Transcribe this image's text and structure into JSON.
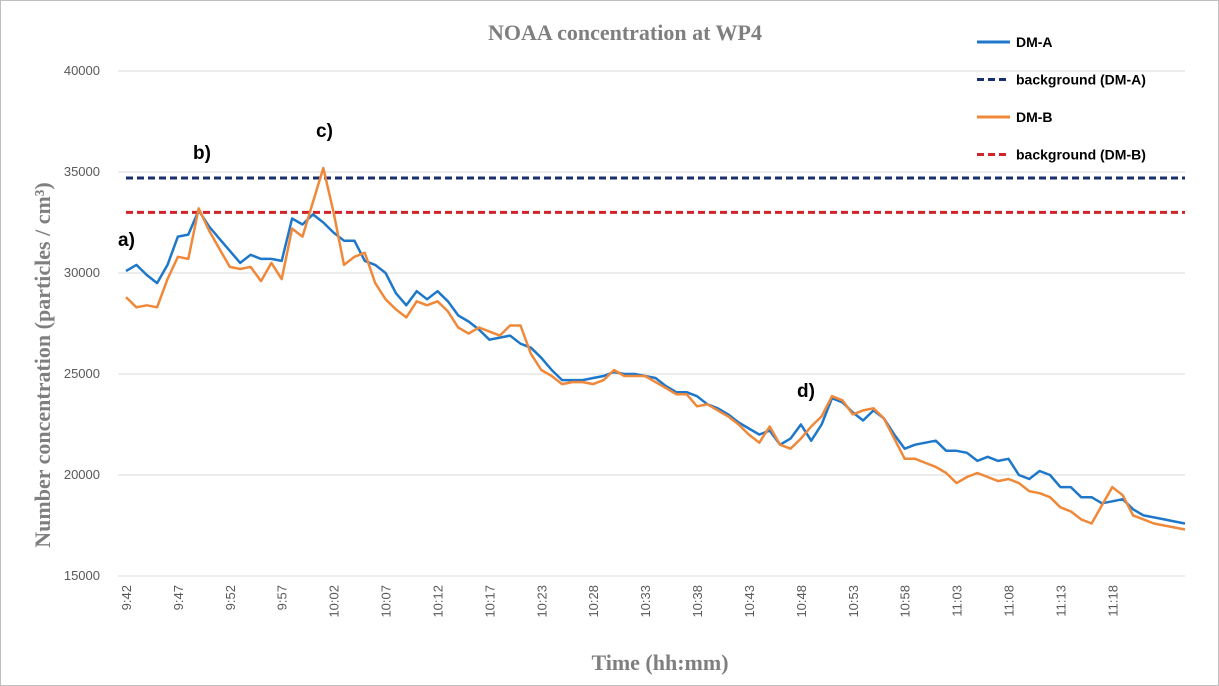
{
  "chart_data": {
    "type": "line",
    "title": "NOAA concentration at WP4",
    "x_label": "Time (hh:mm)",
    "y_label": "Number concentration (particles / cm³)",
    "categories": [
      "9:42",
      null,
      null,
      null,
      null,
      "9:47",
      null,
      null,
      null,
      null,
      "9:52",
      null,
      null,
      null,
      null,
      "9:57",
      null,
      null,
      null,
      null,
      "10:02",
      null,
      null,
      null,
      null,
      "10:07",
      null,
      null,
      null,
      null,
      "10:12",
      null,
      null,
      null,
      null,
      "10:17",
      null,
      null,
      null,
      null,
      "10:23",
      null,
      null,
      null,
      null,
      "10:28",
      null,
      null,
      null,
      null,
      "10:33",
      null,
      null,
      null,
      null,
      "10:38",
      null,
      null,
      null,
      null,
      "10:43",
      null,
      null,
      null,
      null,
      "10:48",
      null,
      null,
      null,
      null,
      "10:53",
      null,
      null,
      null,
      null,
      "10:58",
      null,
      null,
      null,
      null,
      "11:03",
      null,
      null,
      null,
      null,
      "11:08",
      null,
      null,
      null,
      null,
      "11:13",
      null,
      null,
      null,
      null,
      "11:18",
      null,
      null,
      null,
      null,
      null,
      null,
      null
    ],
    "series": [
      {
        "name": "DM-A",
        "color": "#1f77c9",
        "values": [
          30100,
          30400,
          29900,
          29500,
          30400,
          31800,
          31900,
          33100,
          32300,
          31700,
          31100,
          30500,
          30900,
          30700,
          30700,
          30600,
          32700,
          32400,
          32900,
          32500,
          32000,
          31600,
          31600,
          30600,
          30400,
          30000,
          29000,
          28400,
          29100,
          28700,
          29100,
          28600,
          27900,
          27600,
          27200,
          26700,
          26800,
          26900,
          26500,
          26300,
          25800,
          25200,
          24700,
          24700,
          24700,
          24800,
          24900,
          25100,
          25000,
          25000,
          24900,
          24800,
          24400,
          24100,
          24100,
          23900,
          23500,
          23300,
          23000,
          22600,
          22300,
          22000,
          22200,
          21500,
          21800,
          22500,
          21700,
          22500,
          23800,
          23600,
          23100,
          22700,
          23200,
          22800,
          22000,
          21300,
          21500,
          21600,
          21700,
          21200,
          21200,
          21100,
          20700,
          20900,
          20700,
          20800,
          20000,
          19800,
          20200,
          20000,
          19400,
          19400,
          18900,
          18900,
          18600,
          18700,
          18800,
          18300,
          18000,
          17900,
          17800,
          17700,
          17600
        ]
      },
      {
        "name": "DM-B",
        "color": "#f0883a",
        "values": [
          28800,
          28300,
          28400,
          28300,
          29700,
          30800,
          30700,
          33200,
          32100,
          31200,
          30300,
          30200,
          30300,
          29600,
          30500,
          29700,
          32200,
          31800,
          33500,
          35200,
          33000,
          30400,
          30800,
          31000,
          29500,
          28700,
          28200,
          27800,
          28600,
          28400,
          28600,
          28100,
          27300,
          27000,
          27300,
          27100,
          26900,
          27400,
          27400,
          26000,
          25200,
          24900,
          24500,
          24600,
          24600,
          24500,
          24700,
          25200,
          24900,
          24900,
          24900,
          24600,
          24300,
          24000,
          24000,
          23400,
          23500,
          23200,
          22900,
          22500,
          22000,
          21600,
          22400,
          21500,
          21300,
          21800,
          22400,
          22900,
          23900,
          23700,
          23000,
          23200,
          23300,
          22800,
          21800,
          20800,
          20800,
          20600,
          20400,
          20100,
          19600,
          19900,
          20100,
          19900,
          19700,
          19800,
          19600,
          19200,
          19100,
          18900,
          18400,
          18200,
          17800,
          17600,
          18500,
          19400,
          19000,
          18000,
          17800,
          17600,
          17500,
          17400,
          17300
        ]
      }
    ],
    "reference_lines": [
      {
        "name": "background (DM-A)",
        "color": "#1a2f6e",
        "value": 34700
      },
      {
        "name": "background (DM-B)",
        "color": "#d0232a",
        "value": 33000
      }
    ],
    "legend_order": [
      "series.0",
      "reference_lines.0",
      "series.1",
      "reference_lines.1"
    ],
    "annotations": [
      "a)",
      "b)",
      "c)",
      "d)"
    ],
    "ylim": [
      15000,
      40000
    ],
    "yticks": [
      15000,
      20000,
      25000,
      30000,
      35000,
      40000
    ],
    "grid": true,
    "legend": "upper right"
  }
}
